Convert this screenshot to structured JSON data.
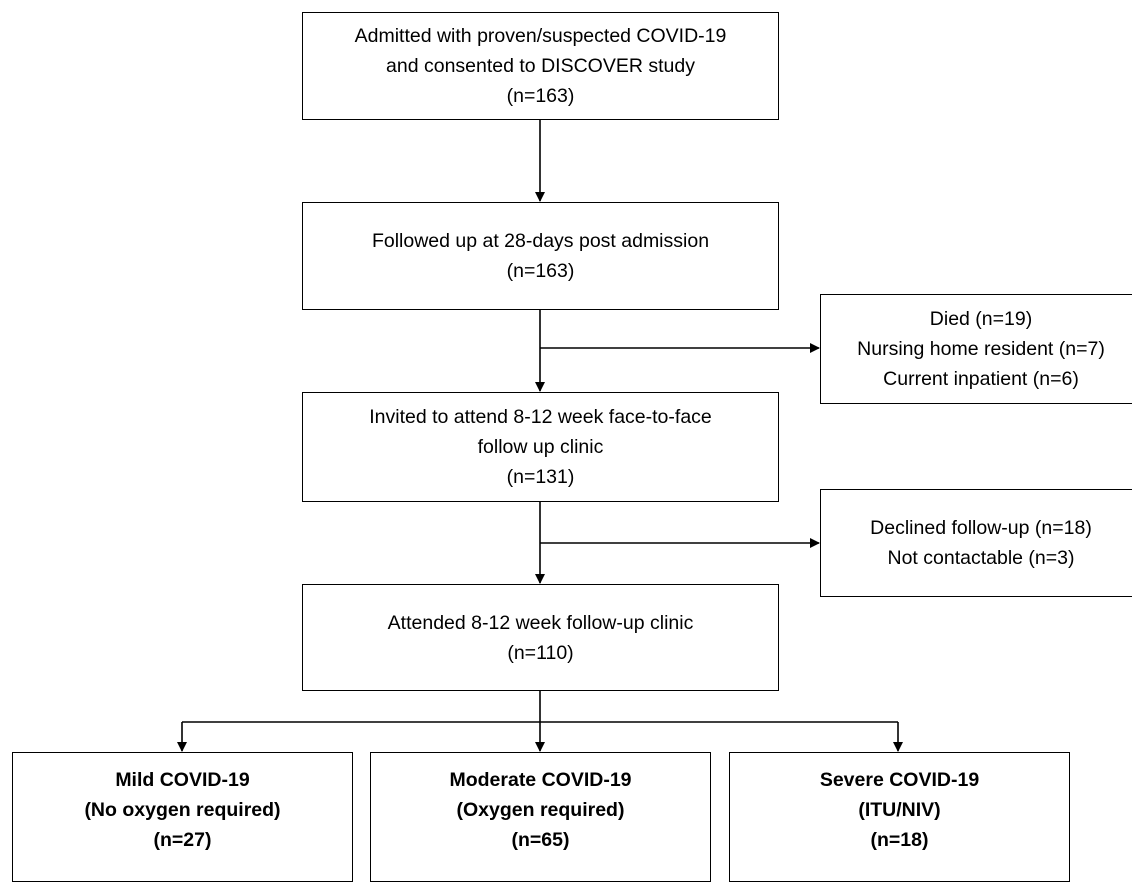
{
  "boxes": {
    "admitted": [
      "Admitted with proven/suspected COVID-19",
      "and consented to DISCOVER study",
      "(n=163)"
    ],
    "followed_up": [
      "Followed up at 28-days post admission",
      "(n=163)"
    ],
    "excluded_1": [
      "Died (n=19)",
      "Nursing home resident (n=7)",
      "Current inpatient (n=6)"
    ],
    "invited": [
      "Invited to attend 8-12 week face-to-face",
      "follow up clinic",
      "(n=131)"
    ],
    "excluded_2": [
      "Declined follow-up (n=18)",
      "Not contactable (n=3)"
    ],
    "attended": [
      "Attended 8-12 week follow-up clinic",
      "(n=110)"
    ],
    "mild": [
      "Mild COVID-19",
      "(No oxygen required)",
      "(n=27)"
    ],
    "moderate": [
      "Moderate COVID-19",
      "(Oxygen required)",
      "(n=65)"
    ],
    "severe": [
      "Severe COVID-19",
      "(ITU/NIV)",
      "(n=18)"
    ]
  }
}
